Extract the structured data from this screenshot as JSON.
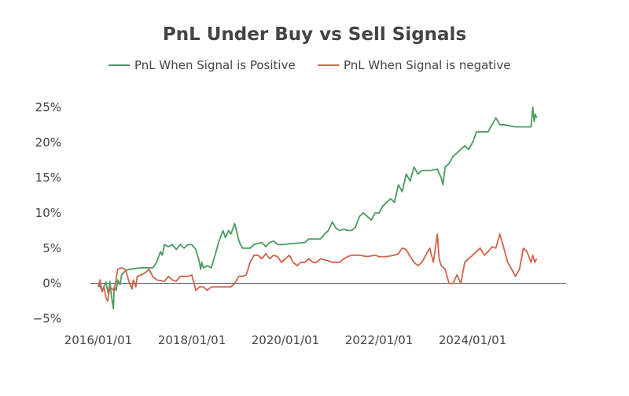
{
  "chart_data": {
    "type": "line",
    "title": "PnL Under Buy vs Sell Signals",
    "xlabel": "",
    "ylabel": "",
    "xlim": [
      "2015-11-01",
      "2025-12-31"
    ],
    "ylim": [
      -0.055,
      0.285
    ],
    "x_ticks": [
      {
        "date": "2016-01-01",
        "label": "2016/01/01"
      },
      {
        "date": "2018-01-01",
        "label": "2018/01/01"
      },
      {
        "date": "2020-01-01",
        "label": "2020/01/01"
      },
      {
        "date": "2022-01-01",
        "label": "2022/01/01"
      },
      {
        "date": "2024-01-01",
        "label": "2024/01/01"
      }
    ],
    "y_ticks": [
      {
        "value": 0.25,
        "label": "25%"
      },
      {
        "value": 0.2,
        "label": "20%"
      },
      {
        "value": 0.15,
        "label": "15%"
      },
      {
        "value": 0.1,
        "label": "10%"
      },
      {
        "value": 0.05,
        "label": "5%"
      },
      {
        "value": 0.0,
        "label": "0%"
      },
      {
        "value": -0.05,
        "label": "−5%"
      }
    ],
    "legend_position": "top-center",
    "series": [
      {
        "name": "PnL When Signal is Positive",
        "color": "#4a9a5e",
        "points": [
          [
            "2016-01-01",
            0.0
          ],
          [
            "2016-02-01",
            -0.01
          ],
          [
            "2016-03-01",
            0.002
          ],
          [
            "2016-03-20",
            -0.015
          ],
          [
            "2016-04-01",
            0.003
          ],
          [
            "2016-04-15",
            -0.02
          ],
          [
            "2016-04-28",
            -0.036
          ],
          [
            "2016-05-05",
            -0.005
          ],
          [
            "2016-05-20",
            -0.01
          ],
          [
            "2016-06-01",
            0.005
          ],
          [
            "2016-06-20",
            -0.002
          ],
          [
            "2016-07-01",
            0.012
          ],
          [
            "2016-08-01",
            0.018
          ],
          [
            "2016-09-01",
            0.02
          ],
          [
            "2016-12-01",
            0.022
          ],
          [
            "2017-03-01",
            0.022
          ],
          [
            "2017-04-01",
            0.03
          ],
          [
            "2017-05-01",
            0.045
          ],
          [
            "2017-05-15",
            0.04
          ],
          [
            "2017-06-01",
            0.055
          ],
          [
            "2017-07-01",
            0.052
          ],
          [
            "2017-08-01",
            0.055
          ],
          [
            "2017-09-01",
            0.048
          ],
          [
            "2017-10-01",
            0.055
          ],
          [
            "2017-11-01",
            0.05
          ],
          [
            "2017-12-01",
            0.055
          ],
          [
            "2018-01-01",
            0.055
          ],
          [
            "2018-02-01",
            0.048
          ],
          [
            "2018-03-01",
            0.03
          ],
          [
            "2018-03-10",
            0.02
          ],
          [
            "2018-03-20",
            0.03
          ],
          [
            "2018-04-01",
            0.022
          ],
          [
            "2018-05-01",
            0.025
          ],
          [
            "2018-06-01",
            0.022
          ],
          [
            "2018-07-01",
            0.04
          ],
          [
            "2018-08-01",
            0.06
          ],
          [
            "2018-09-01",
            0.075
          ],
          [
            "2018-09-20",
            0.065
          ],
          [
            "2018-10-15",
            0.075
          ],
          [
            "2018-11-01",
            0.07
          ],
          [
            "2018-12-01",
            0.085
          ],
          [
            "2019-01-01",
            0.062
          ],
          [
            "2019-01-15",
            0.055
          ],
          [
            "2019-02-01",
            0.05
          ],
          [
            "2019-04-01",
            0.05
          ],
          [
            "2019-05-01",
            0.055
          ],
          [
            "2019-07-01",
            0.058
          ],
          [
            "2019-08-01",
            0.052
          ],
          [
            "2019-09-01",
            0.058
          ],
          [
            "2019-10-01",
            0.06
          ],
          [
            "2019-11-01",
            0.055
          ],
          [
            "2019-12-01",
            0.055
          ],
          [
            "2020-06-01",
            0.058
          ],
          [
            "2020-07-01",
            0.063
          ],
          [
            "2020-10-01",
            0.063
          ],
          [
            "2020-11-01",
            0.07
          ],
          [
            "2020-12-01",
            0.075
          ],
          [
            "2021-01-01",
            0.087
          ],
          [
            "2021-02-01",
            0.078
          ],
          [
            "2021-03-01",
            0.075
          ],
          [
            "2021-04-01",
            0.077
          ],
          [
            "2021-05-01",
            0.075
          ],
          [
            "2021-06-01",
            0.075
          ],
          [
            "2021-07-01",
            0.08
          ],
          [
            "2021-08-01",
            0.095
          ],
          [
            "2021-09-01",
            0.1
          ],
          [
            "2021-10-01",
            0.095
          ],
          [
            "2021-11-01",
            0.09
          ],
          [
            "2021-12-01",
            0.1
          ],
          [
            "2022-01-01",
            0.1
          ],
          [
            "2022-02-01",
            0.11
          ],
          [
            "2022-03-01",
            0.115
          ],
          [
            "2022-04-01",
            0.12
          ],
          [
            "2022-05-01",
            0.115
          ],
          [
            "2022-06-01",
            0.14
          ],
          [
            "2022-07-01",
            0.13
          ],
          [
            "2022-08-01",
            0.155
          ],
          [
            "2022-09-01",
            0.145
          ],
          [
            "2022-10-01",
            0.165
          ],
          [
            "2022-11-01",
            0.155
          ],
          [
            "2022-12-01",
            0.16
          ],
          [
            "2023-02-01",
            0.16
          ],
          [
            "2023-04-01",
            0.162
          ],
          [
            "2023-05-01",
            0.15
          ],
          [
            "2023-05-15",
            0.14
          ],
          [
            "2023-06-01",
            0.165
          ],
          [
            "2023-07-01",
            0.17
          ],
          [
            "2023-08-01",
            0.18
          ],
          [
            "2023-09-01",
            0.185
          ],
          [
            "2023-10-01",
            0.19
          ],
          [
            "2023-11-01",
            0.195
          ],
          [
            "2023-12-01",
            0.19
          ],
          [
            "2024-01-01",
            0.2
          ],
          [
            "2024-02-01",
            0.215
          ],
          [
            "2024-05-01",
            0.215
          ],
          [
            "2024-06-01",
            0.225
          ],
          [
            "2024-07-01",
            0.235
          ],
          [
            "2024-08-01",
            0.225
          ],
          [
            "2024-09-01",
            0.225
          ],
          [
            "2024-12-01",
            0.222
          ],
          [
            "2025-03-01",
            0.222
          ],
          [
            "2025-04-01",
            0.222
          ],
          [
            "2025-04-15",
            0.25
          ],
          [
            "2025-04-25",
            0.23
          ],
          [
            "2025-05-05",
            0.24
          ],
          [
            "2025-05-15",
            0.235
          ]
        ]
      },
      {
        "name": "PnL When Signal is negative",
        "color": "#d0644a",
        "points": [
          [
            "2016-01-01",
            -0.005
          ],
          [
            "2016-01-15",
            0.005
          ],
          [
            "2016-02-01",
            -0.012
          ],
          [
            "2016-02-15",
            -0.005
          ],
          [
            "2016-03-01",
            -0.02
          ],
          [
            "2016-03-15",
            -0.025
          ],
          [
            "2016-04-01",
            -0.005
          ],
          [
            "2016-05-01",
            -0.01
          ],
          [
            "2016-05-15",
            0.0
          ],
          [
            "2016-06-01",
            0.02
          ],
          [
            "2016-07-01",
            0.022
          ],
          [
            "2016-08-01",
            0.02
          ],
          [
            "2016-09-01",
            0.0
          ],
          [
            "2016-09-20",
            -0.008
          ],
          [
            "2016-10-01",
            0.005
          ],
          [
            "2016-10-20",
            -0.005
          ],
          [
            "2016-11-01",
            0.01
          ],
          [
            "2016-12-01",
            0.012
          ],
          [
            "2017-01-01",
            0.015
          ],
          [
            "2017-02-01",
            0.02
          ],
          [
            "2017-03-01",
            0.01
          ],
          [
            "2017-04-01",
            0.005
          ],
          [
            "2017-06-01",
            0.003
          ],
          [
            "2017-07-01",
            0.01
          ],
          [
            "2017-08-01",
            0.005
          ],
          [
            "2017-09-01",
            0.003
          ],
          [
            "2017-10-01",
            0.01
          ],
          [
            "2017-12-01",
            0.01
          ],
          [
            "2018-01-01",
            0.012
          ],
          [
            "2018-02-01",
            -0.01
          ],
          [
            "2018-03-01",
            -0.005
          ],
          [
            "2018-04-01",
            -0.005
          ],
          [
            "2018-05-01",
            -0.01
          ],
          [
            "2018-06-01",
            -0.005
          ],
          [
            "2018-07-01",
            -0.005
          ],
          [
            "2018-08-01",
            -0.005
          ],
          [
            "2018-10-01",
            -0.005
          ],
          [
            "2018-11-01",
            -0.005
          ],
          [
            "2018-12-01",
            0.0
          ],
          [
            "2019-01-01",
            0.01
          ],
          [
            "2019-02-01",
            0.01
          ],
          [
            "2019-03-01",
            0.012
          ],
          [
            "2019-04-01",
            0.03
          ],
          [
            "2019-05-01",
            0.04
          ],
          [
            "2019-06-01",
            0.04
          ],
          [
            "2019-07-01",
            0.035
          ],
          [
            "2019-08-01",
            0.042
          ],
          [
            "2019-09-01",
            0.035
          ],
          [
            "2019-10-01",
            0.04
          ],
          [
            "2019-11-01",
            0.038
          ],
          [
            "2019-12-01",
            0.03
          ],
          [
            "2020-01-01",
            0.035
          ],
          [
            "2020-02-01",
            0.04
          ],
          [
            "2020-03-01",
            0.03
          ],
          [
            "2020-04-01",
            0.025
          ],
          [
            "2020-05-01",
            0.03
          ],
          [
            "2020-06-01",
            0.03
          ],
          [
            "2020-07-01",
            0.035
          ],
          [
            "2020-08-01",
            0.03
          ],
          [
            "2020-09-01",
            0.03
          ],
          [
            "2020-10-01",
            0.035
          ],
          [
            "2020-12-01",
            0.032
          ],
          [
            "2021-01-01",
            0.03
          ],
          [
            "2021-03-01",
            0.03
          ],
          [
            "2021-04-01",
            0.035
          ],
          [
            "2021-05-01",
            0.038
          ],
          [
            "2021-06-01",
            0.04
          ],
          [
            "2021-08-01",
            0.04
          ],
          [
            "2021-10-01",
            0.038
          ],
          [
            "2021-12-01",
            0.04
          ],
          [
            "2022-01-01",
            0.038
          ],
          [
            "2022-03-01",
            0.038
          ],
          [
            "2022-05-01",
            0.04
          ],
          [
            "2022-06-01",
            0.042
          ],
          [
            "2022-07-01",
            0.05
          ],
          [
            "2022-08-01",
            0.048
          ],
          [
            "2022-09-01",
            0.038
          ],
          [
            "2022-10-01",
            0.03
          ],
          [
            "2022-11-01",
            0.025
          ],
          [
            "2022-12-01",
            0.03
          ],
          [
            "2023-01-01",
            0.04
          ],
          [
            "2023-02-01",
            0.05
          ],
          [
            "2023-03-01",
            0.03
          ],
          [
            "2023-04-01",
            0.07
          ],
          [
            "2023-04-15",
            0.035
          ],
          [
            "2023-05-01",
            0.025
          ],
          [
            "2023-06-01",
            0.02
          ],
          [
            "2023-07-01",
            0.0
          ],
          [
            "2023-08-01",
            0.0
          ],
          [
            "2023-09-01",
            0.012
          ],
          [
            "2023-10-01",
            0.0
          ],
          [
            "2023-11-01",
            0.03
          ],
          [
            "2023-12-01",
            0.035
          ],
          [
            "2024-01-01",
            0.04
          ],
          [
            "2024-02-01",
            0.045
          ],
          [
            "2024-03-01",
            0.05
          ],
          [
            "2024-04-01",
            0.04
          ],
          [
            "2024-05-01",
            0.045
          ],
          [
            "2024-06-01",
            0.052
          ],
          [
            "2024-07-01",
            0.05
          ],
          [
            "2024-08-01",
            0.07
          ],
          [
            "2024-09-01",
            0.05
          ],
          [
            "2024-10-01",
            0.03
          ],
          [
            "2024-11-01",
            0.02
          ],
          [
            "2024-12-01",
            0.01
          ],
          [
            "2025-01-01",
            0.02
          ],
          [
            "2025-02-01",
            0.05
          ],
          [
            "2025-03-01",
            0.045
          ],
          [
            "2025-04-01",
            0.03
          ],
          [
            "2025-04-15",
            0.04
          ],
          [
            "2025-05-01",
            0.03
          ],
          [
            "2025-05-15",
            0.035
          ]
        ]
      }
    ]
  }
}
